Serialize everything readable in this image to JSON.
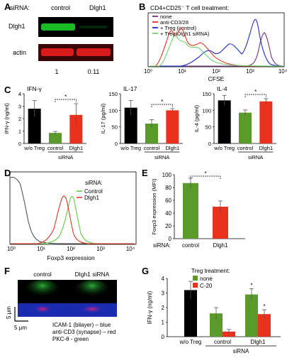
{
  "figure": {
    "panels": [
      "A",
      "B",
      "C",
      "D",
      "E",
      "F",
      "G"
    ],
    "colors": {
      "black": "#000000",
      "green": "#5a9a2a",
      "red": "#e8321e",
      "blue": "#1f2fd0",
      "purple": "#7b2f85",
      "lightgreen": "#6ed36e",
      "blot_green": "#1ecf2a",
      "blot_red": "#d81b1b"
    }
  },
  "panel_a": {
    "sirna_label": "siRNA:",
    "lanes": [
      "control",
      "Dlgh1"
    ],
    "rows": [
      "Dlgh1",
      "actin"
    ],
    "quant": [
      "1",
      "0.11"
    ]
  },
  "panel_b": {
    "header": "CD4+CD25⁻ T cell treatment:",
    "legend": [
      "none",
      "anti-CD3/28",
      "+ Treg (control)",
      "+ Treg(Dlgh1 siRNA)"
    ],
    "xlabel": "CFSE",
    "ticks": [
      "10⁰",
      "10¹",
      "10²",
      "10³",
      "10⁴"
    ]
  },
  "panel_c": {
    "charts": [
      {
        "title": "IFN-γ",
        "ylabel": "IFN-γ (ng/ml)",
        "yticks": [
          "0",
          "1",
          "2",
          "3",
          "4"
        ],
        "ymax": 4,
        "categories": [
          "w/o Treg",
          "control",
          "Dlgh1"
        ],
        "values": [
          2.8,
          0.85,
          2.3
        ],
        "errors": [
          0.65,
          0.12,
          0.9
        ],
        "sig": "*"
      },
      {
        "title": "IL-17",
        "ylabel": "IL-17 (pg/ml)",
        "yticks": [
          "0",
          "50",
          "100",
          "150"
        ],
        "ymax": 150,
        "categories": [
          "w/o Treg",
          "control",
          "Dlgh1"
        ],
        "values": [
          108,
          60,
          100
        ],
        "errors": [
          22,
          12,
          5
        ],
        "sig": "*"
      },
      {
        "title": "IL-4",
        "ylabel": "IL-4 (pg/ml)",
        "yticks": [
          "0",
          "50",
          "100",
          "150"
        ],
        "ymax": 150,
        "categories": [
          "w/o Treg",
          "control",
          "Dlgh1"
        ],
        "values": [
          130,
          93,
          127
        ],
        "errors": [
          15,
          8,
          8
        ],
        "sig": "*"
      }
    ],
    "group_label": "siRNA"
  },
  "panel_d": {
    "legend_title": "siRNA:",
    "legend": [
      "Control",
      "Dlgh1"
    ],
    "xlabel": "Foxp3 expression",
    "ticks": [
      "10⁰",
      "10¹",
      "10²",
      "10³",
      "10⁴"
    ]
  },
  "panel_e": {
    "ylabel": "Foxp3 expression (MFI)",
    "yticks": [
      "0",
      "20",
      "40",
      "60",
      "80",
      "100"
    ],
    "ymax": 100,
    "xlabel_prefix": "siRNA:",
    "categories": [
      "control",
      "Dlgh1"
    ],
    "values": [
      87,
      50
    ],
    "errors": [
      8,
      9
    ],
    "sig": "*"
  },
  "panel_f": {
    "images": [
      "control",
      "Dlgh1 siRNA"
    ],
    "scale_y": "5 μm",
    "scale_x": "5 μm",
    "caption": [
      "ICAM-1 (bilayer) – blue",
      "anti-CD3 (synapse) – red",
      "PKC-θ - green"
    ]
  },
  "panel_g": {
    "legend_title": "Treg treatment:",
    "legend": [
      "none",
      "C-20"
    ],
    "ylabel": "IFN-γ (ng/ml)",
    "yticks": [
      "0",
      "1",
      "2",
      "3",
      "4"
    ],
    "ymax": 4,
    "categories": [
      "w/o Treg",
      "control",
      "Dlgh1"
    ],
    "group_label": "siRNA",
    "sig": "*"
  },
  "chart_data": [
    {
      "type": "bar",
      "title": "IFN-γ",
      "ylabel": "IFN-γ (ng/ml)",
      "categories": [
        "w/o Treg",
        "control",
        "Dlgh1"
      ],
      "values": [
        2.8,
        0.85,
        2.3
      ],
      "ylim": [
        0,
        4
      ]
    },
    {
      "type": "bar",
      "title": "IL-17",
      "ylabel": "IL-17 (pg/ml)",
      "categories": [
        "w/o Treg",
        "control",
        "Dlgh1"
      ],
      "values": [
        108,
        60,
        100
      ],
      "ylim": [
        0,
        150
      ]
    },
    {
      "type": "bar",
      "title": "IL-4",
      "ylabel": "IL-4 (pg/ml)",
      "categories": [
        "w/o Treg",
        "control",
        "Dlgh1"
      ],
      "values": [
        130,
        93,
        127
      ],
      "ylim": [
        0,
        150
      ]
    },
    {
      "type": "bar",
      "ylabel": "Foxp3 expression (MFI)",
      "categories": [
        "control",
        "Dlgh1"
      ],
      "values": [
        87,
        50
      ],
      "ylim": [
        0,
        100
      ]
    },
    {
      "type": "bar",
      "ylabel": "IFN-γ (ng/ml)",
      "categories": [
        "w/o Treg",
        "control",
        "Dlgh1"
      ],
      "series": [
        {
          "name": "none",
          "values": [
            3.2,
            1.6,
            2.9
          ]
        },
        {
          "name": "C-20",
          "values": [
            null,
            0.35,
            1.55
          ]
        }
      ],
      "ylim": [
        0,
        4
      ]
    }
  ]
}
